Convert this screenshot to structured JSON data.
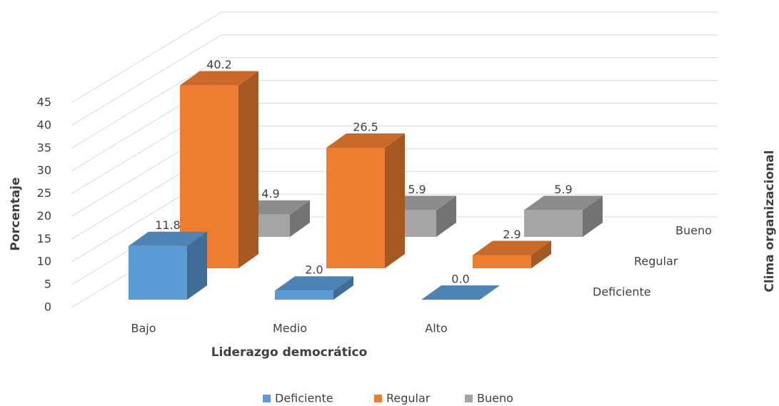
{
  "chart_data": {
    "type": "bar3d",
    "categories": [
      "Bajo",
      "Medio",
      "Alto"
    ],
    "x_label": "Liderazgo democrático",
    "y_label": "Porcentaje",
    "z_label": "Clima organizacional",
    "ylim": [
      0,
      45
    ],
    "yticks": [
      0,
      5,
      10,
      15,
      20,
      25,
      30,
      35,
      40,
      45
    ],
    "grid": true,
    "legend": "bottom",
    "series": [
      {
        "name": "Deficiente",
        "color": "#5b9bd5",
        "values": [
          11.8,
          2.0,
          0.0
        ],
        "value_labels": [
          "11.8",
          "2.0",
          "0.0"
        ]
      },
      {
        "name": "Regular",
        "color": "#ed7d31",
        "values": [
          40.2,
          26.5,
          2.9
        ],
        "value_labels": [
          "40.2",
          "26.5",
          "2.9"
        ]
      },
      {
        "name": "Bueno",
        "color": "#a5a5a5",
        "values": [
          4.9,
          5.9,
          5.9
        ],
        "value_labels": [
          "4.9",
          "5.9",
          "5.9"
        ]
      }
    ]
  }
}
